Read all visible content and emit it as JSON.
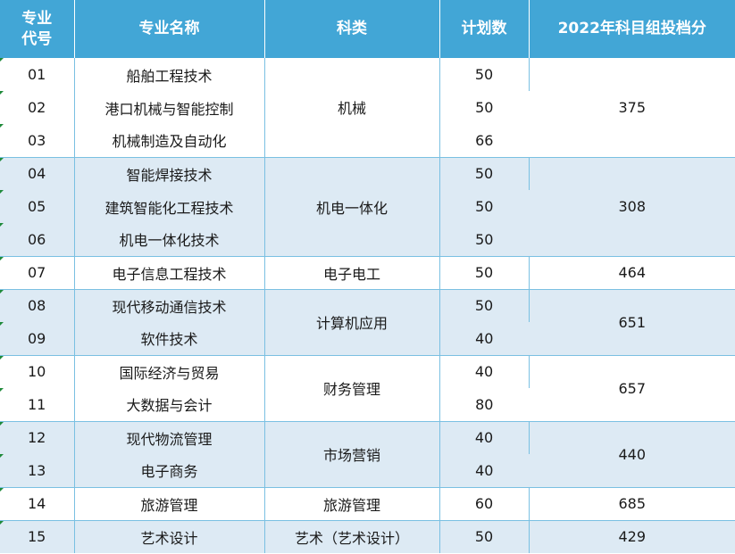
{
  "table": {
    "headers": {
      "code": "专业代号",
      "name": "专业名称",
      "category": "科类",
      "plan": "计划数",
      "score": "2022年科目组投档分"
    },
    "rows": [
      {
        "code": "01",
        "name": "船舶工程技术",
        "plan": "50"
      },
      {
        "code": "02",
        "name": "港口机械与智能控制",
        "plan": "50"
      },
      {
        "code": "03",
        "name": "机械制造及自动化",
        "plan": "66"
      },
      {
        "code": "04",
        "name": "智能焊接技术",
        "plan": "50"
      },
      {
        "code": "05",
        "name": "建筑智能化工程技术",
        "plan": "50"
      },
      {
        "code": "06",
        "name": "机电一体化技术",
        "plan": "50"
      },
      {
        "code": "07",
        "name": "电子信息工程技术",
        "plan": "50"
      },
      {
        "code": "08",
        "name": "现代移动通信技术",
        "plan": "50"
      },
      {
        "code": "09",
        "name": "软件技术",
        "plan": "40"
      },
      {
        "code": "10",
        "name": "国际经济与贸易",
        "plan": "40"
      },
      {
        "code": "11",
        "name": "大数据与会计",
        "plan": "80"
      },
      {
        "code": "12",
        "name": "现代物流管理",
        "plan": "40"
      },
      {
        "code": "13",
        "name": "电子商务",
        "plan": "40"
      },
      {
        "code": "14",
        "name": "旅游管理",
        "plan": "60"
      },
      {
        "code": "15",
        "name": "艺术设计",
        "plan": "50"
      }
    ],
    "groups": [
      {
        "category": "机械",
        "score": "375"
      },
      {
        "category": "机电一体化",
        "score": "308"
      },
      {
        "category": "电子电工",
        "score": "464"
      },
      {
        "category": "计算机应用",
        "score": "651"
      },
      {
        "category": "财务管理",
        "score": "657"
      },
      {
        "category": "市场营销",
        "score": "440"
      },
      {
        "category": "旅游管理",
        "score": "685"
      },
      {
        "category": "艺术（艺术设计）",
        "score": "429"
      }
    ],
    "colors": {
      "header_bg": "#42a6d6",
      "header_text": "#ffffff",
      "band_white": "#ffffff",
      "band_blue": "#ddeaf4",
      "grid": "#7ac0e2"
    }
  }
}
